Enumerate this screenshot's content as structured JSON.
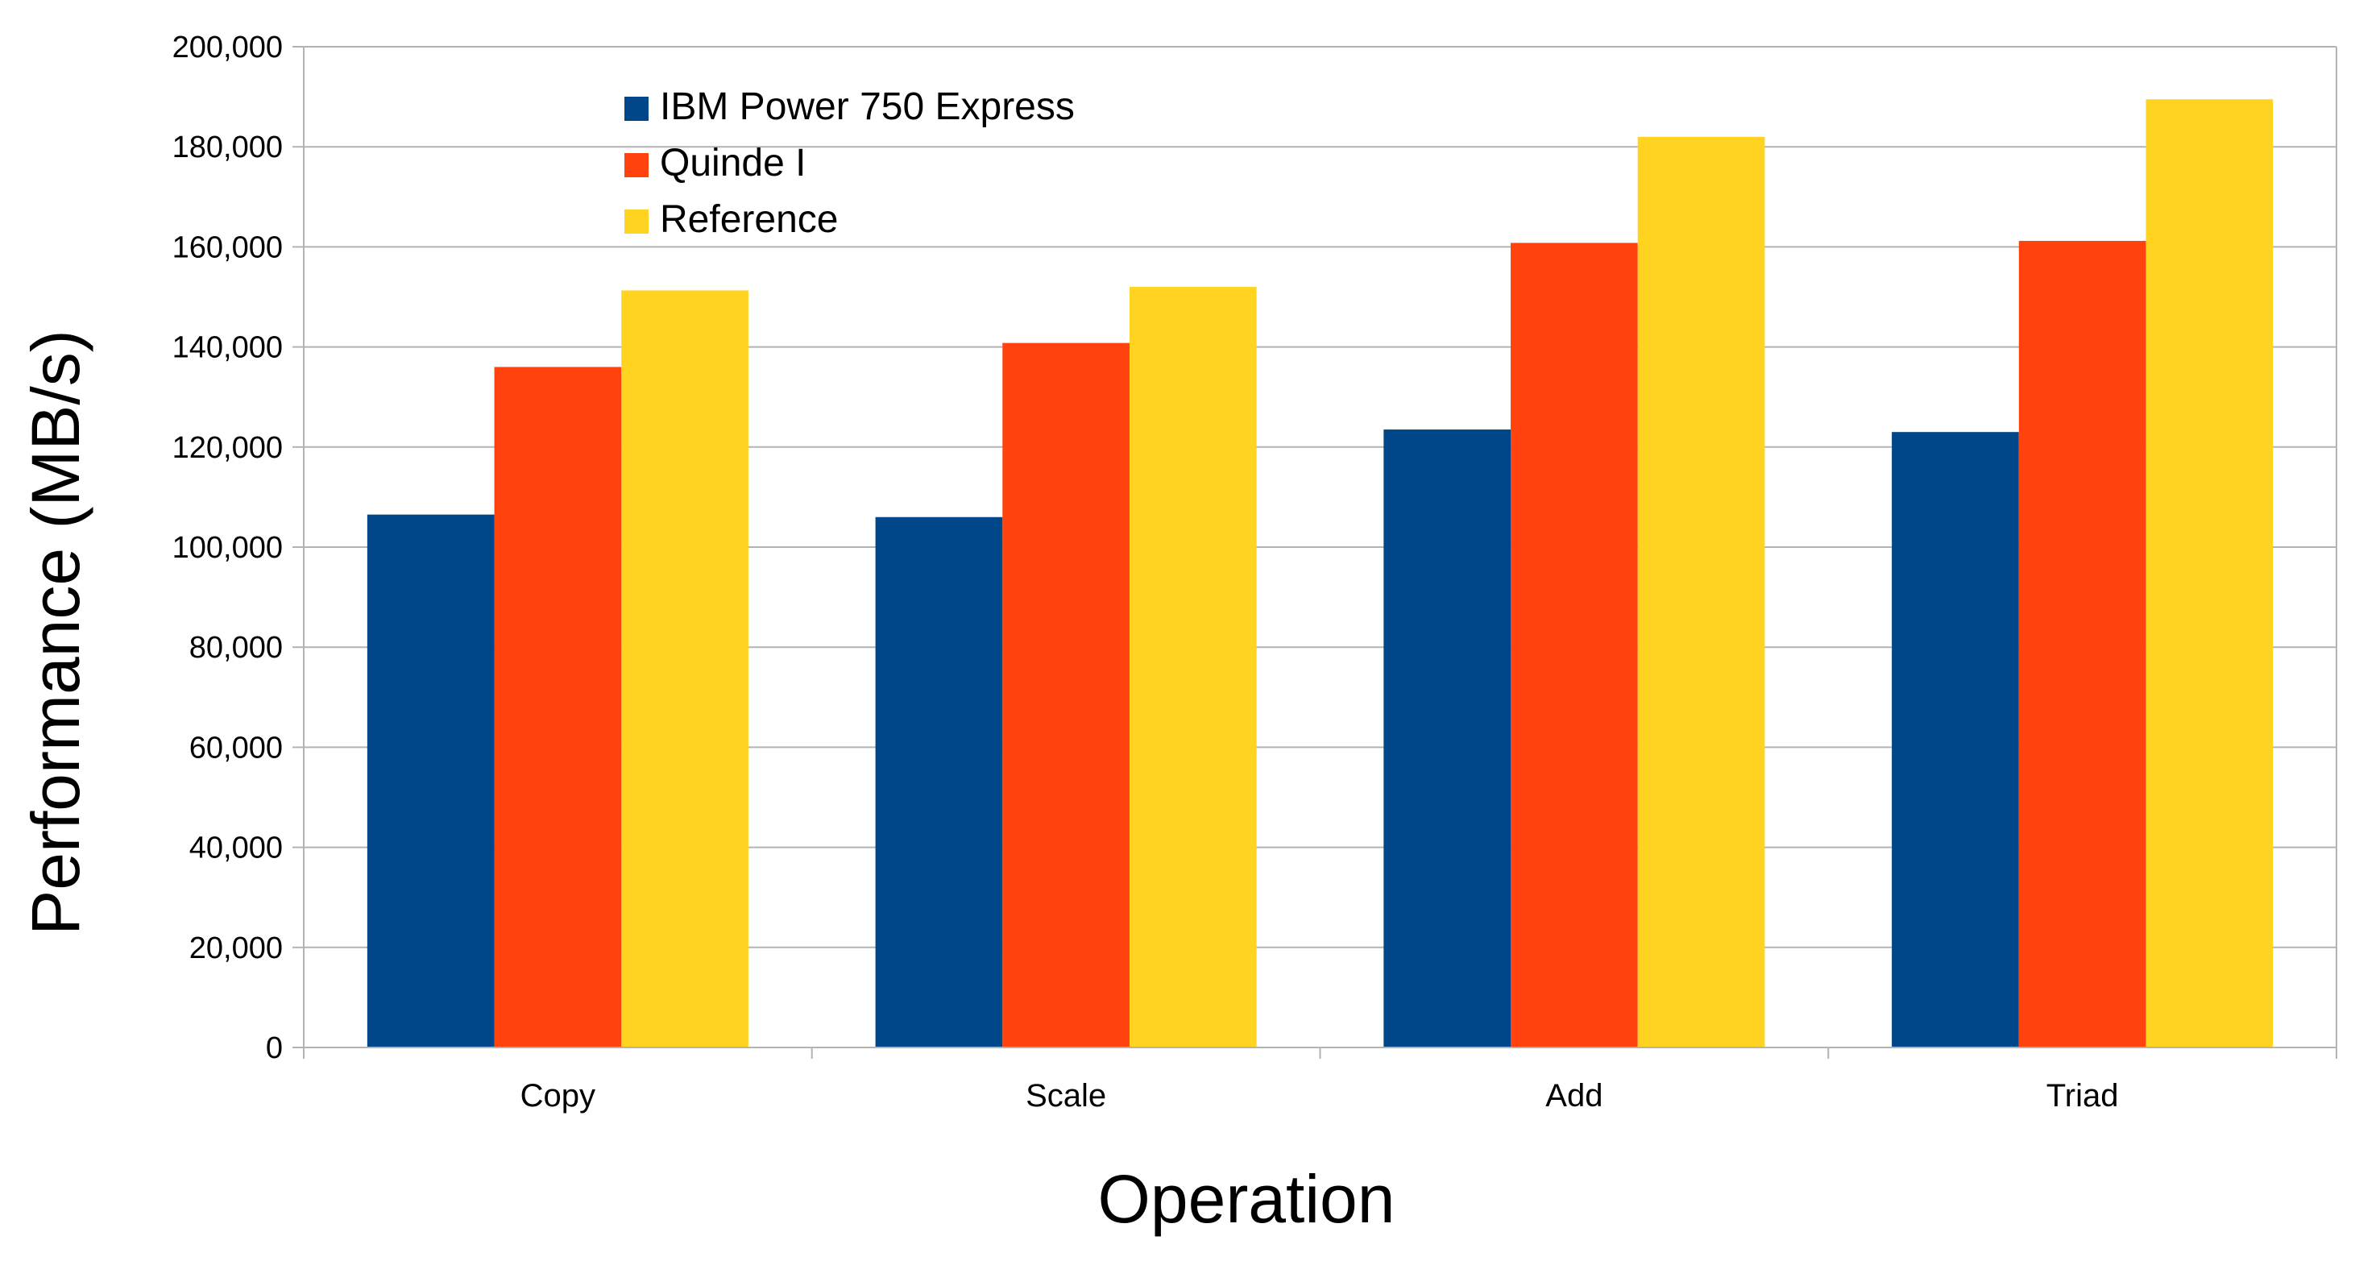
{
  "chart_data": {
    "type": "bar",
    "title": "",
    "xlabel": "Operation",
    "ylabel": "Performance (MB/s)",
    "categories": [
      "Copy",
      "Scale",
      "Add",
      "Triad"
    ],
    "series": [
      {
        "name": "IBM Power 750 Express",
        "color": "#00478a",
        "values": [
          106500,
          106000,
          123500,
          123000
        ]
      },
      {
        "name": "Quinde I",
        "color": "#ff420e",
        "values": [
          136000,
          140800,
          160800,
          161200
        ]
      },
      {
        "name": "Reference",
        "color": "#ffd320",
        "values": [
          151300,
          152000,
          182000,
          189500
        ]
      }
    ],
    "ylim": [
      0,
      200000
    ],
    "yticks": [
      0,
      20000,
      40000,
      60000,
      80000,
      100000,
      120000,
      140000,
      160000,
      180000,
      200000
    ],
    "ytick_labels": [
      "0",
      "20,000",
      "40,000",
      "60,000",
      "80,000",
      "100,000",
      "120,000",
      "140,000",
      "160,000",
      "180,000",
      "200,000"
    ],
    "grid": true,
    "legend_position": "top-left inside plot"
  }
}
